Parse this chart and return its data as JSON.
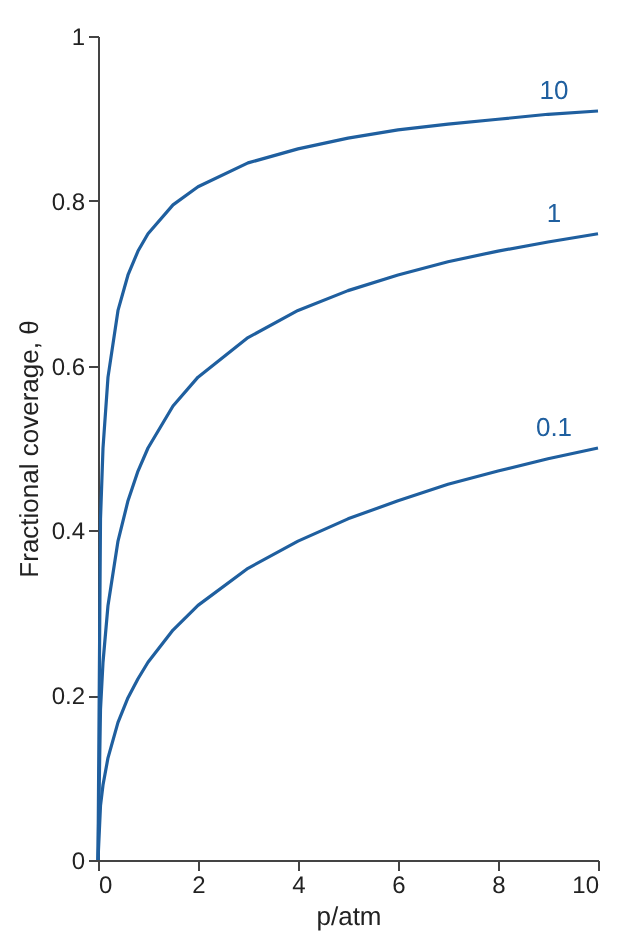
{
  "chart_data": {
    "type": "line",
    "xlabel": "p/atm",
    "ylabel": "Fractional coverage, θ",
    "x": [
      0,
      0.05,
      0.1,
      0.2,
      0.4,
      0.6,
      0.8,
      1,
      1.5,
      2,
      3,
      4,
      5,
      6,
      7,
      8,
      9,
      10
    ],
    "series": [
      {
        "name": "10",
        "color": "#1f5f9f",
        "values": [
          0,
          0.414,
          0.5,
          0.586,
          0.667,
          0.71,
          0.739,
          0.76,
          0.795,
          0.817,
          0.846,
          0.863,
          0.876,
          0.886,
          0.893,
          0.899,
          0.905,
          0.909
        ]
      },
      {
        "name": "1",
        "color": "#1f5f9f",
        "values": [
          0,
          0.183,
          0.24,
          0.309,
          0.387,
          0.436,
          0.472,
          0.5,
          0.551,
          0.586,
          0.634,
          0.667,
          0.691,
          0.71,
          0.726,
          0.739,
          0.75,
          0.76
        ]
      },
      {
        "name": "0.1",
        "color": "#1f5f9f",
        "values": [
          0,
          0.066,
          0.091,
          0.124,
          0.167,
          0.197,
          0.22,
          0.24,
          0.279,
          0.309,
          0.354,
          0.387,
          0.414,
          0.436,
          0.456,
          0.472,
          0.487,
          0.5
        ]
      }
    ],
    "xlim": [
      0,
      10
    ],
    "xticks": [
      0,
      2,
      4,
      6,
      8,
      10
    ],
    "ylim": [
      0,
      1
    ],
    "yticks": [
      0,
      0.2,
      0.4,
      0.6,
      0.8,
      1
    ],
    "grid": false,
    "legend": false,
    "marker": "none",
    "line_style": "solid"
  }
}
